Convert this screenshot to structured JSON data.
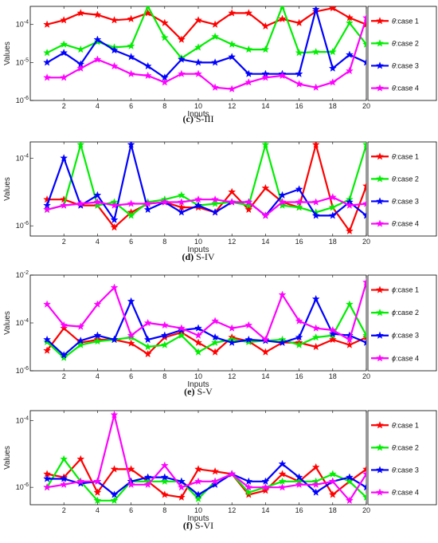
{
  "chart_data": [
    {
      "type": "line",
      "caption_letter": "(c)",
      "caption_text": "S-III",
      "xlabel": "Inputs",
      "ylabel": "Values",
      "log_y": true,
      "xlim": [
        0,
        20
      ],
      "ylim": [
        1e-06,
        0.0003
      ],
      "x_ticks": [
        2,
        4,
        6,
        8,
        10,
        12,
        14,
        16,
        18,
        20
      ],
      "y_ticks": [
        {
          "value": 0.0001,
          "label": "10^-4"
        },
        {
          "value": 1e-05,
          "label": "10^-5"
        },
        {
          "value": 1e-06,
          "label": "10^-6"
        }
      ],
      "legend_position": "right",
      "x": [
        1,
        2,
        3,
        4,
        5,
        6,
        7,
        8,
        9,
        10,
        11,
        12,
        13,
        14,
        15,
        16,
        17,
        18,
        19,
        20
      ],
      "series": [
        {
          "name_symbol": "θ",
          "name_rest": ":case 1",
          "color": "#ff0000",
          "values": [
            0.0001,
            0.00013,
            0.0002,
            0.00018,
            0.00013,
            0.00014,
            0.0002,
            0.00011,
            4e-05,
            0.00013,
            0.0001,
            0.0002,
            0.0002,
            9e-05,
            0.00014,
            0.00011,
            0.00022,
            0.00027,
            0.00015,
            0.0001
          ]
        },
        {
          "name_symbol": "θ",
          "name_rest": ":case 2",
          "color": "#00ee00",
          "values": [
            1.8e-05,
            3e-05,
            2.2e-05,
            3.5e-05,
            2.5e-05,
            2.7e-05,
            0.0003,
            4.5e-05,
            1.3e-05,
            2.5e-05,
            4.8e-05,
            3e-05,
            2.2e-05,
            2.2e-05,
            0.0003,
            1.8e-05,
            1.9e-05,
            1.9e-05,
            0.00011,
            3e-05
          ]
        },
        {
          "name_symbol": "θ",
          "name_rest": ":case 3",
          "color": "#0000ff",
          "values": [
            1e-05,
            1.8e-05,
            9e-06,
            4e-05,
            2.1e-05,
            1.4e-05,
            8e-06,
            4e-06,
            1.2e-05,
            1e-05,
            1e-05,
            1.4e-05,
            5e-06,
            5e-06,
            5e-06,
            5e-06,
            0.00025,
            7e-06,
            1.6e-05,
            1e-05
          ]
        },
        {
          "name_symbol": "θ",
          "name_rest": ":case 4",
          "color": "#ff00ff",
          "values": [
            4e-06,
            4e-06,
            7e-06,
            1.2e-05,
            8e-06,
            5e-06,
            4.5e-06,
            3e-06,
            5e-06,
            5e-06,
            2.2e-06,
            2e-06,
            3e-06,
            4e-06,
            4.5e-06,
            2.7e-06,
            2.2e-06,
            3e-06,
            6e-06,
            0.00015
          ]
        }
      ]
    },
    {
      "type": "line",
      "caption_letter": "(d)",
      "caption_text": "S-IV",
      "xlabel": "Inputs",
      "ylabel": "Values",
      "log_y": true,
      "xlim": [
        0,
        20
      ],
      "ylim": [
        5e-07,
        0.0003
      ],
      "x_ticks": [
        2,
        4,
        6,
        8,
        10,
        12,
        14,
        16,
        18,
        20
      ],
      "y_ticks": [
        {
          "value": 0.0001,
          "label": "10^-4"
        },
        {
          "value": 1e-06,
          "label": "10^-6"
        }
      ],
      "legend_position": "right",
      "x": [
        1,
        2,
        3,
        4,
        5,
        6,
        7,
        8,
        9,
        10,
        11,
        12,
        13,
        14,
        15,
        16,
        17,
        18,
        19,
        20
      ],
      "series": [
        {
          "name_symbol": "θ",
          "name_rest": ":case 1",
          "color": "#ff0000",
          "values": [
            6e-06,
            6e-06,
            4e-06,
            4e-06,
            9e-07,
            2.5e-06,
            4.5e-06,
            5e-06,
            3.5e-06,
            3.5e-06,
            2.5e-06,
            1e-05,
            3e-06,
            1.3e-05,
            5e-06,
            3.5e-06,
            0.00025,
            3.5e-06,
            7e-07,
            1.5e-05
          ]
        },
        {
          "name_symbol": "θ",
          "name_rest": ":case 2",
          "color": "#00ee00",
          "values": [
            3e-06,
            4e-06,
            0.00025,
            4e-06,
            5e-06,
            2e-06,
            5e-06,
            6e-06,
            8e-06,
            4e-06,
            4.5e-06,
            5e-06,
            4e-06,
            0.00025,
            4e-06,
            3.5e-06,
            2.5e-06,
            3.5e-06,
            6e-06,
            0.00025
          ]
        },
        {
          "name_symbol": "θ",
          "name_rest": ":case 3",
          "color": "#0000ff",
          "values": [
            4e-06,
            0.0001,
            4e-06,
            8e-06,
            1.5e-06,
            0.00025,
            3e-06,
            5e-06,
            2.5e-06,
            4e-06,
            2.5e-06,
            5e-06,
            5e-06,
            2e-06,
            8e-06,
            1.2e-05,
            2e-06,
            2e-06,
            5e-06,
            2e-06
          ]
        },
        {
          "name_symbol": "θ",
          "name_rest": ":case 4",
          "color": "#ff00ff",
          "values": [
            3e-06,
            4e-06,
            4.5e-06,
            5e-06,
            4e-06,
            4.5e-06,
            4.5e-06,
            5e-06,
            5e-06,
            6e-06,
            6e-06,
            5e-06,
            5e-06,
            2e-06,
            5e-06,
            5e-06,
            5e-06,
            7e-06,
            4e-06,
            4.5e-06
          ]
        }
      ]
    },
    {
      "type": "line",
      "caption_letter": "(e)",
      "caption_text": "S-V",
      "xlabel": "Inputs",
      "ylabel": "Values",
      "log_y": true,
      "xlim": [
        0,
        20
      ],
      "ylim": [
        1e-06,
        0.01
      ],
      "x_ticks": [
        2,
        4,
        6,
        8,
        10,
        12,
        14,
        16,
        18,
        20
      ],
      "y_ticks": [
        {
          "value": 0.01,
          "label": "10^-2"
        },
        {
          "value": 0.0001,
          "label": "10^-4"
        },
        {
          "value": 1e-06,
          "label": "10^-6"
        }
      ],
      "legend_position": "right",
      "x": [
        1,
        2,
        3,
        4,
        5,
        6,
        7,
        8,
        9,
        10,
        11,
        12,
        13,
        14,
        15,
        16,
        17,
        18,
        19,
        20
      ],
      "series": [
        {
          "name_symbol": "ϕ",
          "name_rest": ":case 1",
          "color": "#ff0000",
          "values": [
            7e-06,
            6e-05,
            1.5e-05,
            2e-05,
            2e-05,
            1.4e-05,
            5e-06,
            2.5e-05,
            4e-05,
            1.5e-05,
            6e-06,
            2.5e-05,
            1.7e-05,
            6e-06,
            1.5e-05,
            1.5e-05,
            1e-05,
            2e-05,
            1.2e-05,
            2.5e-05
          ]
        },
        {
          "name_symbol": "ϕ",
          "name_rest": ":case 2",
          "color": "#00ee00",
          "values": [
            1.6e-05,
            3.5e-06,
            1.2e-05,
            1.7e-05,
            2e-05,
            2.5e-05,
            1e-05,
            1.2e-05,
            3e-05,
            6e-06,
            1.5e-05,
            2e-05,
            1.6e-05,
            1.8e-05,
            2e-05,
            1.2e-05,
            2.5e-05,
            3e-05,
            0.0006,
            3e-05
          ]
        },
        {
          "name_symbol": "ϕ",
          "name_rest": ":case 3",
          "color": "#0000ff",
          "values": [
            2e-05,
            4.5e-06,
            1.8e-05,
            3e-05,
            2e-05,
            0.0008,
            2e-05,
            3e-05,
            5e-05,
            6e-05,
            2.5e-05,
            1.5e-05,
            2e-05,
            1.8e-05,
            1.5e-05,
            2.5e-05,
            0.001,
            3.5e-05,
            3e-05,
            1.5e-05
          ]
        },
        {
          "name_symbol": "ϕ",
          "name_rest": ":case 4",
          "color": "#ff00ff",
          "values": [
            0.0006,
            8e-05,
            7e-05,
            0.0006,
            0.003,
            3e-05,
            0.0001,
            8e-05,
            6e-05,
            3e-05,
            0.00012,
            6e-05,
            8e-05,
            2e-05,
            0.0015,
            0.00012,
            6e-05,
            5e-05,
            2e-05,
            0.005
          ]
        }
      ]
    },
    {
      "type": "line",
      "caption_letter": "(f)",
      "caption_text": "S-VI",
      "xlabel": "Inputs",
      "ylabel": "Values",
      "log_y": true,
      "xlim": [
        0,
        20
      ],
      "ylim": [
        3e-07,
        0.0002
      ],
      "x_ticks": [
        2,
        4,
        6,
        8,
        10,
        12,
        14,
        16,
        18,
        20
      ],
      "y_ticks": [
        {
          "value": 0.0001,
          "label": "10^-4"
        },
        {
          "value": 1e-06,
          "label": "10^-6"
        }
      ],
      "legend_position": "right",
      "x": [
        1,
        2,
        3,
        4,
        5,
        6,
        7,
        8,
        9,
        10,
        11,
        12,
        13,
        14,
        15,
        16,
        17,
        18,
        19,
        20
      ],
      "series": [
        {
          "name_symbol": "θ",
          "name_rest": ":case 1",
          "color": "#ff0000",
          "values": [
            2.5e-06,
            2e-06,
            7e-06,
            7e-07,
            3.5e-06,
            3.5e-06,
            1.5e-06,
            6e-07,
            5e-07,
            3.5e-06,
            3e-06,
            2.5e-06,
            6e-07,
            8e-07,
            2.5e-06,
            1.5e-06,
            4e-06,
            6e-07,
            1.5e-06,
            3.5e-06
          ]
        },
        {
          "name_symbol": "θ",
          "name_rest": ":case 2",
          "color": "#00ee00",
          "values": [
            1e-06,
            7e-06,
            1.5e-06,
            4e-07,
            4e-07,
            1.5e-06,
            1.5e-06,
            1.5e-06,
            1.5e-06,
            4.5e-07,
            1.5e-06,
            2.5e-06,
            7e-07,
            1e-06,
            1.5e-06,
            1.5e-06,
            1.5e-06,
            2.5e-06,
            1.5e-06,
            5e-07
          ]
        },
        {
          "name_symbol": "θ",
          "name_rest": ":case 3",
          "color": "#0000ff",
          "values": [
            1.8e-06,
            1.8e-06,
            1.3e-06,
            1.5e-06,
            6e-07,
            1.5e-06,
            2e-06,
            2e-06,
            1.5e-06,
            6e-07,
            1.2e-06,
            2.5e-06,
            1.5e-06,
            1.5e-06,
            5e-06,
            2e-06,
            7e-07,
            1.5e-06,
            2e-06,
            1e-06
          ]
        },
        {
          "name_symbol": "θ",
          "name_rest": ":case 4",
          "color": "#ff00ff",
          "values": [
            1e-06,
            1.2e-06,
            1.5e-06,
            1.5e-06,
            0.00015,
            1.2e-06,
            1.2e-06,
            4.5e-06,
            1e-06,
            1.5e-06,
            1.5e-06,
            2.5e-06,
            1e-06,
            1e-06,
            1e-06,
            1.2e-06,
            1.2e-06,
            1.5e-06,
            4e-07,
            2.5e-06
          ]
        }
      ]
    }
  ]
}
